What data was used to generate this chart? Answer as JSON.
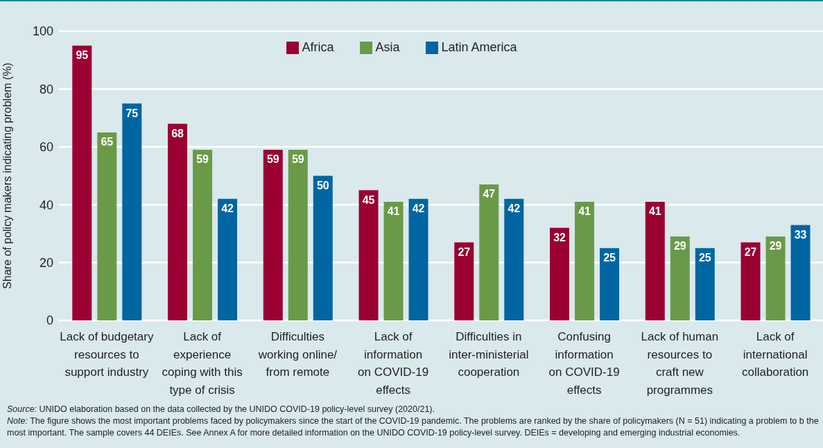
{
  "chart_data": {
    "type": "bar",
    "ylabel": "Share of policy makers indicating problem (%)",
    "categories": [
      "Lack of budgetary\nresources to\nsupport industry",
      "Lack of\nexperience\ncoping with this\ntype of crisis",
      "Difficulties\nworking online/\nfrom remote",
      "Lack of\ninformation\non COVID-19\neffects",
      "Difficulties in\ninter-ministerial\ncooperation",
      "Confusing\ninformation\non COVID-19\neffects",
      "Lack of human\nresources to\ncraft new\nprogrammes",
      "Lack of\ninternational\ncollaboration"
    ],
    "series": [
      {
        "name": "Africa",
        "color": "#9b0032",
        "values": [
          95,
          68,
          59,
          45,
          27,
          32,
          41,
          27
        ]
      },
      {
        "name": "Asia",
        "color": "#6a9a48",
        "values": [
          65,
          59,
          59,
          41,
          47,
          41,
          29,
          29
        ]
      },
      {
        "name": "Latin America",
        "color": "#0066a1",
        "values": [
          75,
          42,
          50,
          42,
          42,
          25,
          25,
          33
        ]
      }
    ],
    "ylim": [
      0,
      100
    ],
    "yticks": [
      0,
      20,
      40,
      60,
      80,
      100
    ],
    "grid": "y",
    "legend": "top",
    "data_labels": true,
    "annotations": [
      "Source: UNIDO elaboration based on the data collected by the UNIDO COVID-19 policy-level survey (2020/21).",
      "Note: The figure shows the most important problems faced by policymakers since the start of the COVID-19 pandemic. The problems are ranked by the share of policymakers (N = 51) indicating a problem to b the most important. The sample covers 44 DEIEs. See Annex A for more detailed information on the UNIDO COVID-19 policy-level survey. DEIEs = developing and emerging industrial economies."
    ]
  }
}
